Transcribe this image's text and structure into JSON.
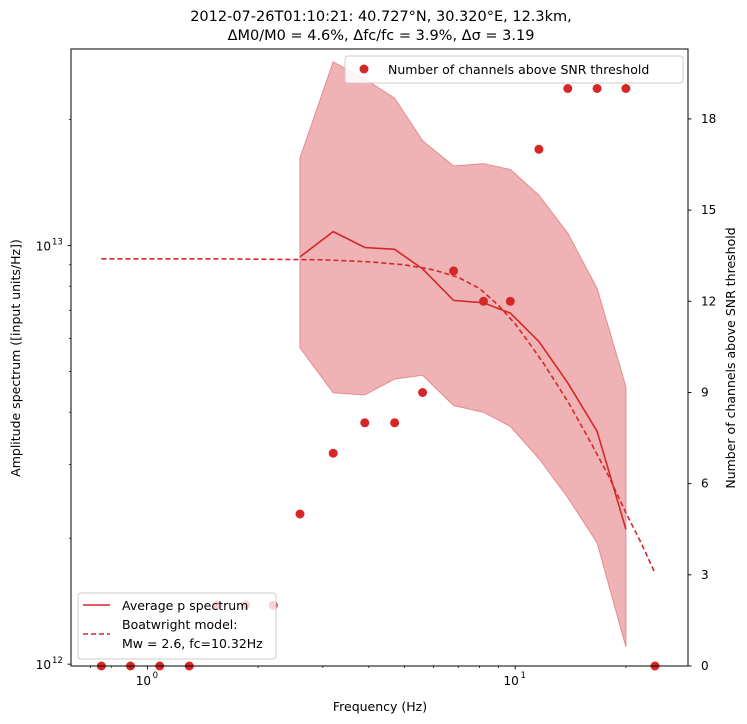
{
  "chart_data": {
    "type": "line",
    "title_line1": "2012-07-26T01:10:21: 40.727°N, 30.320°E, 12.3km,",
    "title_line2": "ΔM0/M0 = 4.6%, Δfc/fc = 3.9%, Δσ = 3.19",
    "xlabel": "Frequency (Hz)",
    "ylabel_left": "Amplitude spectrum ([input units/Hz])",
    "ylabel_right": "Number of channels above SNR threshold",
    "x_scale": "log",
    "y_left_scale": "log",
    "xlim": [
      0.62,
      29.5
    ],
    "ylim_left": [
      990000000000.0,
      29500000000000.0
    ],
    "ylim_right": [
      0,
      20.3
    ],
    "x_ticks": [
      {
        "value": 1,
        "base": "10",
        "exp": "0"
      },
      {
        "value": 10,
        "base": "10",
        "exp": "1"
      }
    ],
    "y_left_ticks": [
      {
        "value": 1000000000000.0,
        "base": "10",
        "exp": "12"
      },
      {
        "value": 10000000000000.0,
        "base": "10",
        "exp": "13"
      }
    ],
    "y_right_ticks": [
      "0",
      "3",
      "6",
      "9",
      "12",
      "15",
      "18"
    ],
    "colors": {
      "line": "#d62728",
      "band": "#f0b3b5",
      "band_edge": "#e58a8f"
    },
    "series": [
      {
        "name": "Average p spectrum",
        "x": [
          2.6,
          3.2,
          3.9,
          4.7,
          5.6,
          6.8,
          8.2,
          9.7,
          11.6,
          13.9,
          16.7,
          20.0
        ],
        "y": [
          9400000000000.0,
          10800000000000.0,
          9900000000000.0,
          9800000000000.0,
          8800000000000.0,
          7400000000000.0,
          7300000000000.0,
          6900000000000.0,
          5900000000000.0,
          4700000000000.0,
          3600000000000.0,
          2100000000000.0
        ]
      },
      {
        "name": "Boatwright model: Mw = 2.6, fc=10.32Hz",
        "legend_line1": "Boatwright model:",
        "legend_line2": "Mw = 2.6, fc=10.32Hz",
        "x": [
          0.75,
          1.0,
          1.5,
          2.0,
          3.0,
          4.0,
          5.0,
          6.0,
          7.0,
          8.0,
          9.0,
          10.0,
          11.0,
          12.0,
          14.0,
          16.0,
          18.0,
          20.0,
          22.0,
          24.0
        ],
        "y": [
          9300000000000.0,
          9300000000000.0,
          9300000000000.0,
          9280000000000.0,
          9250000000000.0,
          9150000000000.0,
          9000000000000.0,
          8750000000000.0,
          8400000000000.0,
          7900000000000.0,
          7200000000000.0,
          6500000000000.0,
          5800000000000.0,
          5200000000000.0,
          4200000000000.0,
          3400000000000.0,
          2800000000000.0,
          2300000000000.0,
          1950000000000.0,
          1650000000000.0
        ]
      }
    ],
    "band": {
      "x": [
        2.6,
        3.2,
        3.9,
        4.7,
        5.6,
        6.8,
        8.2,
        9.7,
        11.6,
        13.9,
        16.7,
        20.0
      ],
      "lower": [
        5700000000000.0,
        4450000000000.0,
        4400000000000.0,
        4800000000000.0,
        4900000000000.0,
        4150000000000.0,
        4000000000000.0,
        3700000000000.0,
        3100000000000.0,
        2500000000000.0,
        1950000000000.0,
        1100000000000.0
      ],
      "upper": [
        16200000000000.0,
        27500000000000.0,
        25000000000000.0,
        22500000000000.0,
        17800000000000.0,
        15500000000000.0,
        15700000000000.0,
        15200000000000.0,
        13200000000000.0,
        10700000000000.0,
        7900000000000.0,
        4600000000000.0
      ]
    },
    "scatter": {
      "name": "Number of channels above SNR threshold",
      "x": [
        0.75,
        0.9,
        1.08,
        1.3,
        1.55,
        1.85,
        2.2,
        2.6,
        3.2,
        3.9,
        4.7,
        5.6,
        6.8,
        8.2,
        9.7,
        11.6,
        13.9,
        16.7,
        20.0,
        24.0
      ],
      "y": [
        0,
        0,
        0,
        0,
        2,
        2,
        2,
        5,
        7,
        8,
        8,
        9,
        13,
        12,
        12,
        17,
        19,
        19,
        19,
        0
      ]
    }
  }
}
